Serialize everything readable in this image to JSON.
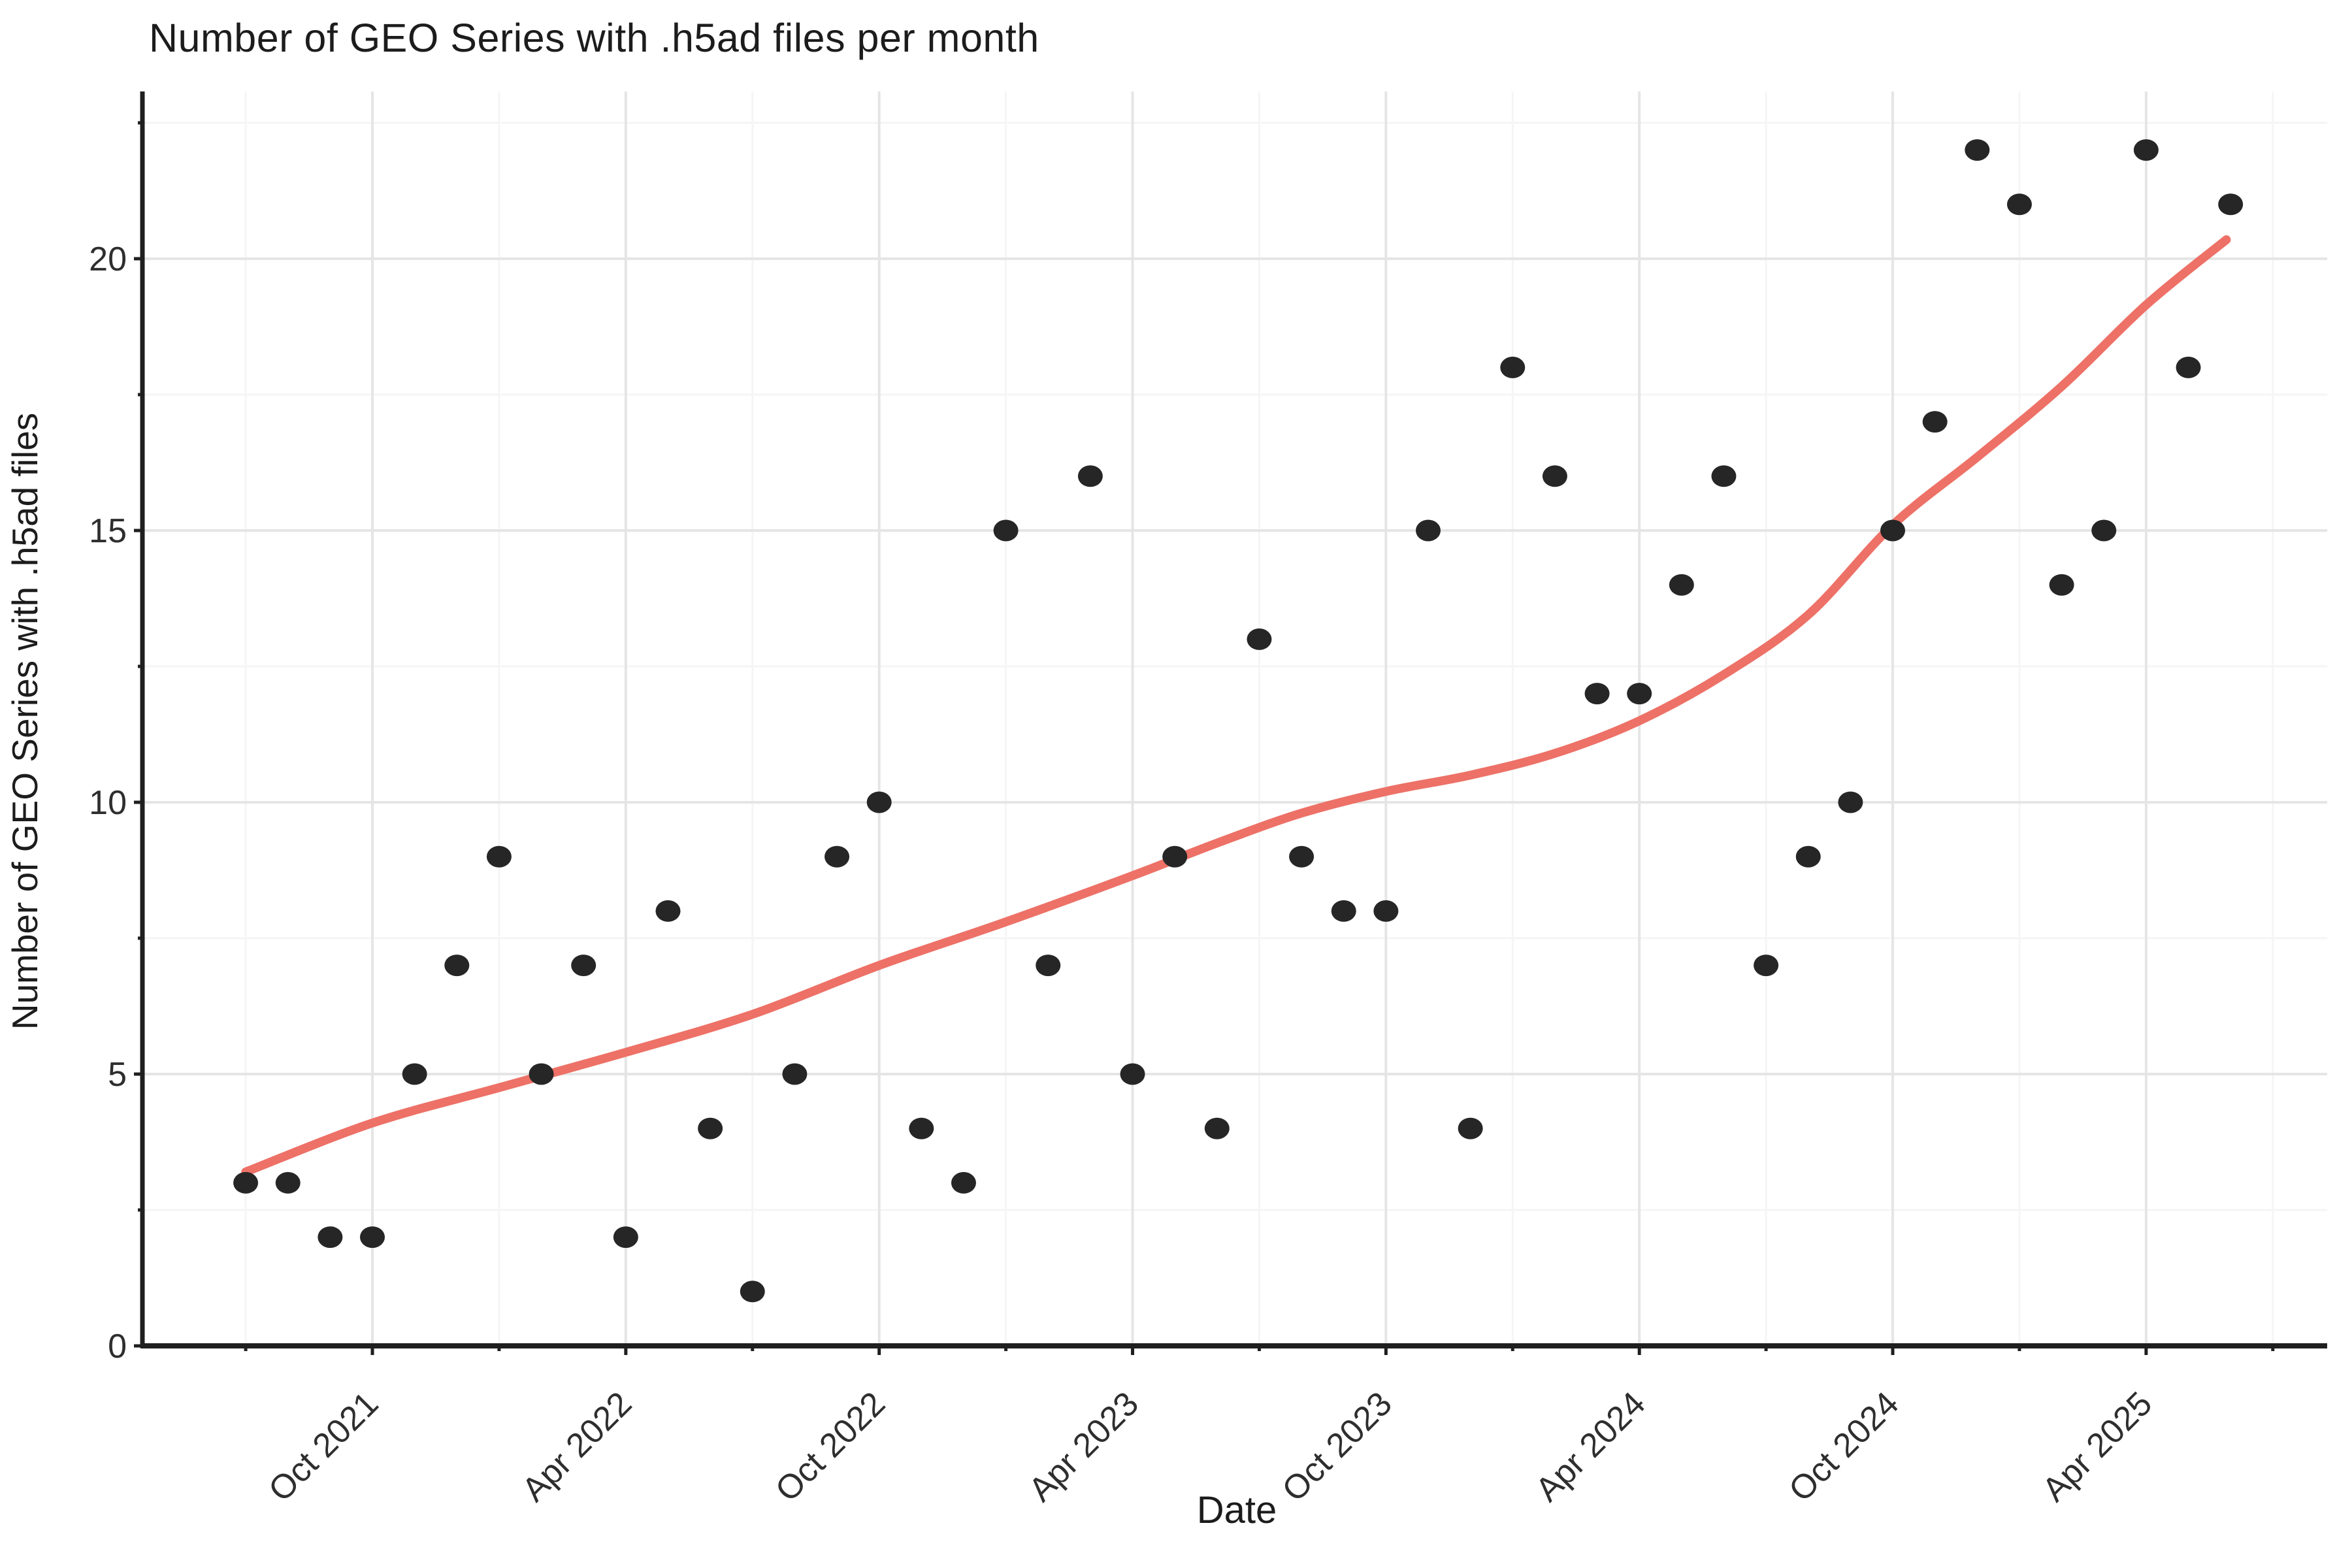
{
  "title": "Number of GEO Series with .h5ad files per month",
  "axes": {
    "x_label": "Date",
    "y_label": "Number of GEO Series with .h5ad files"
  },
  "chart_data": {
    "type": "scatter",
    "title": "Number of GEO Series with .h5ad files per month",
    "xlabel": "Date",
    "ylabel": "Number of GEO Series with .h5ad files",
    "grid": "on",
    "legend": "none",
    "ylim": [
      0,
      23
    ],
    "x_range": [
      "2021-07",
      "2025-06"
    ],
    "y_major_ticks": [
      {
        "label": "0",
        "v": 0
      },
      {
        "label": "5",
        "v": 5
      },
      {
        "label": "10",
        "v": 10
      },
      {
        "label": "15",
        "v": 15
      },
      {
        "label": "20",
        "v": 20
      }
    ],
    "y_minor_ticks": [
      2.5,
      7.5,
      12.5,
      17.5,
      22.5
    ],
    "x_major_ticks": [
      {
        "label": "Oct 2021",
        "m": 3
      },
      {
        "label": "Apr 2022",
        "m": 9
      },
      {
        "label": "Oct 2022",
        "m": 15
      },
      {
        "label": "Apr 2023",
        "m": 21
      },
      {
        "label": "Oct 2023",
        "m": 27
      },
      {
        "label": "Apr 2024",
        "m": 33
      },
      {
        "label": "Oct 2024",
        "m": 39
      },
      {
        "label": "Apr 2025",
        "m": 45
      }
    ],
    "x_minor_ticks_m": [
      0,
      6,
      12,
      18,
      24,
      30,
      36,
      42,
      48
    ],
    "points": [
      {
        "date": "2021-07",
        "count": 3
      },
      {
        "date": "2021-08",
        "count": 3
      },
      {
        "date": "2021-09",
        "count": 2
      },
      {
        "date": "2021-10",
        "count": 2
      },
      {
        "date": "2021-11",
        "count": 5
      },
      {
        "date": "2021-12",
        "count": 7
      },
      {
        "date": "2022-01",
        "count": 9
      },
      {
        "date": "2022-02",
        "count": 5
      },
      {
        "date": "2022-03",
        "count": 7
      },
      {
        "date": "2022-04",
        "count": 2
      },
      {
        "date": "2022-05",
        "count": 8
      },
      {
        "date": "2022-06",
        "count": 4
      },
      {
        "date": "2022-07",
        "count": 1
      },
      {
        "date": "2022-08",
        "count": 5
      },
      {
        "date": "2022-09",
        "count": 9
      },
      {
        "date": "2022-10",
        "count": 10
      },
      {
        "date": "2022-11",
        "count": 4
      },
      {
        "date": "2022-12",
        "count": 3
      },
      {
        "date": "2023-01",
        "count": 15
      },
      {
        "date": "2023-02",
        "count": 7
      },
      {
        "date": "2023-03",
        "count": 16
      },
      {
        "date": "2023-04",
        "count": 5
      },
      {
        "date": "2023-05",
        "count": 9
      },
      {
        "date": "2023-06",
        "count": 4
      },
      {
        "date": "2023-07",
        "count": 13
      },
      {
        "date": "2023-08",
        "count": 9
      },
      {
        "date": "2023-09",
        "count": 8
      },
      {
        "date": "2023-10",
        "count": 8
      },
      {
        "date": "2023-11",
        "count": 15
      },
      {
        "date": "2023-12",
        "count": 4
      },
      {
        "date": "2024-01",
        "count": 18
      },
      {
        "date": "2024-02",
        "count": 16
      },
      {
        "date": "2024-03",
        "count": 12
      },
      {
        "date": "2024-04",
        "count": 12
      },
      {
        "date": "2024-05",
        "count": 14
      },
      {
        "date": "2024-06",
        "count": 16
      },
      {
        "date": "2024-07",
        "count": 7
      },
      {
        "date": "2024-08",
        "count": 9
      },
      {
        "date": "2024-09",
        "count": 10
      },
      {
        "date": "2024-10",
        "count": 15
      },
      {
        "date": "2024-11",
        "count": 17
      },
      {
        "date": "2024-12",
        "count": 22
      },
      {
        "date": "2025-01",
        "count": 21
      },
      {
        "date": "2025-02",
        "count": 14
      },
      {
        "date": "2025-03",
        "count": 15
      },
      {
        "date": "2025-04",
        "count": 22
      },
      {
        "date": "2025-05",
        "count": 18
      },
      {
        "date": "2025-06",
        "count": 21
      }
    ],
    "trend": {
      "name": "smoothed trend (loess)",
      "samples_month_value": [
        [
          0,
          3.2
        ],
        [
          3,
          4.1
        ],
        [
          6,
          4.75
        ],
        [
          9,
          5.4
        ],
        [
          12,
          6.1
        ],
        [
          15,
          7.0
        ],
        [
          18,
          7.8
        ],
        [
          21,
          8.65
        ],
        [
          23,
          9.25
        ],
        [
          25,
          9.8
        ],
        [
          27,
          10.2
        ],
        [
          29,
          10.5
        ],
        [
          31,
          10.9
        ],
        [
          33,
          11.5
        ],
        [
          35,
          12.35
        ],
        [
          37,
          13.45
        ],
        [
          39,
          15.1
        ],
        [
          41,
          16.35
        ],
        [
          43,
          17.65
        ],
        [
          45,
          19.15
        ],
        [
          46.9,
          20.35
        ]
      ]
    }
  },
  "style": {
    "background": "#ffffff",
    "point_color": "#262626",
    "trend_color": "#ED7167",
    "grid_major_color": "#e5e5e5",
    "grid_minor_color": "#f5f5f5",
    "axis_line_color": "#1f1f1f",
    "tick_text_color": "#2e2e2e",
    "title_color": "#1c1c1c"
  }
}
